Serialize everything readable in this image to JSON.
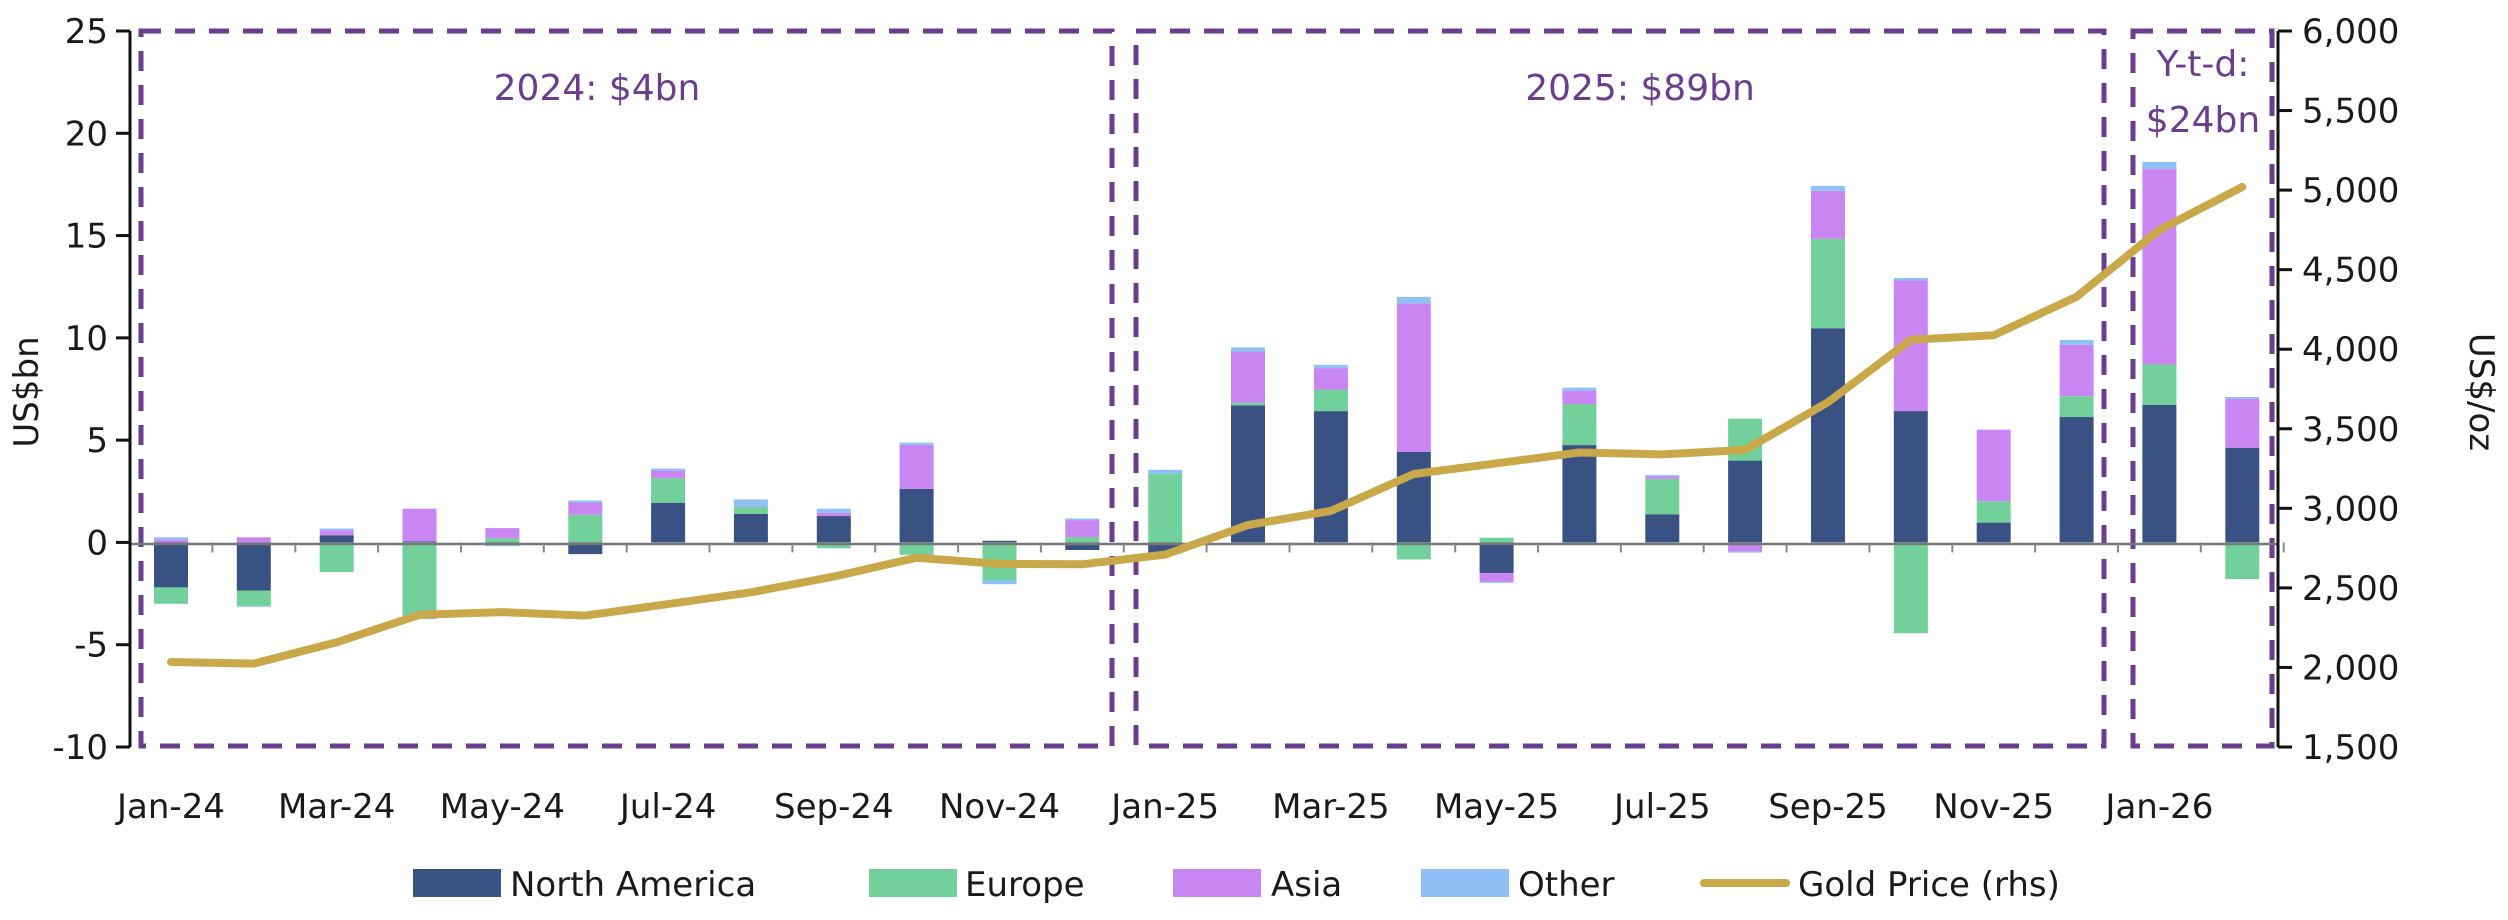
{
  "chart_data": {
    "type": "bar",
    "subtype": "stacked-bar-with-line",
    "categories": [
      "Jan-24",
      "Feb-24",
      "Mar-24",
      "Apr-24",
      "May-24",
      "Jun-24",
      "Jul-24",
      "Aug-24",
      "Sep-24",
      "Oct-24",
      "Nov-24",
      "Dec-24",
      "Jan-25",
      "Feb-25",
      "Mar-25",
      "Apr-25",
      "May-25",
      "Jun-25",
      "Jul-25",
      "Aug-25",
      "Sep-25",
      "Oct-25",
      "Nov-25",
      "Dec-25",
      "Jan-26",
      "Feb-26"
    ],
    "x_tick_labels": [
      "Jan-24",
      "Mar-24",
      "May-24",
      "Jul-24",
      "Sep-24",
      "Nov-24",
      "Jan-25",
      "Mar-25",
      "May-25",
      "Jul-25",
      "Sep-25",
      "Nov-25",
      "Jan-26"
    ],
    "series": [
      {
        "name": "North America",
        "axis": "left",
        "kind": "bar",
        "color": "#3a5283",
        "values": [
          -2.2,
          -2.35,
          0.35,
          0.05,
          -0.1,
          -0.57,
          1.94,
          1.39,
          1.29,
          2.62,
          0.08,
          -0.37,
          -0.53,
          6.7,
          6.42,
          4.43,
          -1.5,
          4.76,
          1.38,
          4.0,
          10.47,
          6.42,
          0.97,
          6.13,
          6.72,
          4.63
        ]
      },
      {
        "name": "Europe",
        "axis": "left",
        "kind": "bar",
        "color": "#72d19a",
        "values": [
          -0.8,
          -0.75,
          -1.45,
          -3.5,
          0.2,
          1.35,
          1.2,
          0.34,
          -0.29,
          -0.61,
          -1.86,
          0.26,
          3.35,
          0.13,
          1.05,
          -0.83,
          0.23,
          2.0,
          1.73,
          2.05,
          4.37,
          -4.44,
          1.04,
          1.02,
          1.98,
          -1.79
        ]
      },
      {
        "name": "Asia",
        "axis": "left",
        "kind": "bar",
        "color": "#c986f2",
        "values": [
          0.15,
          0.25,
          0.25,
          1.6,
          0.5,
          0.6,
          0.37,
          0.02,
          0.16,
          2.15,
          0.0,
          0.83,
          0.0,
          2.5,
          1.05,
          7.25,
          -0.43,
          0.65,
          0.13,
          -0.45,
          2.35,
          6.4,
          3.5,
          2.51,
          9.55,
          2.39
        ]
      },
      {
        "name": "Other",
        "axis": "left",
        "kind": "bar",
        "color": "#8ec2f7",
        "values": [
          0.1,
          -0.05,
          0.08,
          -0.25,
          -0.08,
          0.1,
          0.1,
          0.35,
          0.2,
          0.11,
          -0.18,
          0.08,
          0.2,
          0.2,
          0.16,
          0.32,
          -0.05,
          0.16,
          0.05,
          -0.05,
          0.24,
          0.11,
          0.0,
          0.24,
          0.35,
          0.09
        ]
      },
      {
        "name": "Gold Price (rhs)",
        "axis": "right",
        "kind": "line",
        "color": "#c9a84a",
        "values": [
          2034,
          2024,
          2158,
          2331,
          2348,
          2326,
          2398,
          2472,
          2571,
          2690,
          2651,
          2648,
          2709,
          2895,
          2984,
          3216,
          3283,
          3351,
          3339,
          3367,
          3667,
          4059,
          4088,
          4330,
          4750,
          5020
        ]
      }
    ],
    "ylabel": "US$bn",
    "ylim": [
      -10,
      25
    ],
    "yticks": [
      "25",
      "20",
      "15",
      "10",
      "5",
      "0",
      "-5",
      "-10"
    ],
    "ytick_values": [
      25,
      20,
      15,
      10,
      5,
      0,
      -5,
      -10
    ],
    "y2label": "US$/oz",
    "y2lim": [
      1500,
      6000
    ],
    "y2ticks": [
      "6,000",
      "5,500",
      "5,000",
      "4,500",
      "4,000",
      "3,500",
      "3,000",
      "2,500",
      "2,000",
      "1,500"
    ],
    "y2tick_values": [
      6000,
      5500,
      5000,
      4500,
      4000,
      3500,
      3000,
      2500,
      2000,
      1500
    ],
    "grid": false,
    "legend": {
      "placement": "bottom",
      "entries": [
        "North America",
        "Europe",
        "Asia",
        "Other",
        "Gold Price (rhs)"
      ]
    },
    "annotations": [
      {
        "text": "2024: $4bn",
        "span": [
          "Jan-24",
          "Dec-24"
        ]
      },
      {
        "text": "2025: $89bn",
        "span": [
          "Jan-25",
          "Dec-25"
        ]
      },
      {
        "text_lines": [
          "Y-t-d:",
          "$24bn"
        ],
        "span": [
          "Jan-26",
          "Feb-26"
        ]
      }
    ],
    "accent_color": "#6a3d8f"
  }
}
